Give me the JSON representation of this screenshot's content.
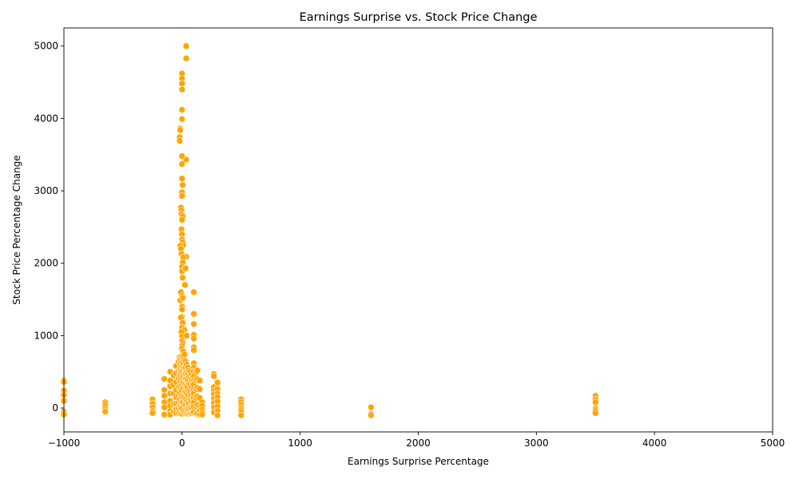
{
  "chart_data": {
    "type": "scatter",
    "title": "Earnings Surprise vs. Stock Price Change",
    "xlabel": "Earnings Surprise Percentage",
    "ylabel": "Stock Price Percentage Change",
    "xlim": [
      -1000,
      5000
    ],
    "ylim": [
      -330,
      5250
    ],
    "x_ticks": [
      -1000,
      0,
      1000,
      2000,
      3000,
      4000,
      5000
    ],
    "y_ticks": [
      0,
      1000,
      2000,
      3000,
      4000,
      5000
    ],
    "grid": false,
    "legend": "none",
    "marker_color": "#ffa500",
    "series": [
      {
        "x": [
          35,
          35,
          0,
          0,
          0,
          0,
          0,
          0,
          -15,
          -15,
          -20,
          -20,
          35,
          0,
          0,
          0,
          5,
          0,
          0,
          -10,
          -5,
          -5,
          5,
          0,
          -5,
          0,
          0,
          5,
          10,
          -15,
          -10,
          -5,
          35,
          10,
          5,
          0,
          0,
          5,
          25,
          30,
          -10,
          -15,
          0,
          5,
          0,
          0,
          100,
          0,
          -10,
          5,
          0,
          100,
          20,
          -5,
          0,
          100,
          100,
          0,
          5,
          100,
          100,
          0,
          100,
          0,
          270,
          270,
          -150,
          300,
          -1000,
          -1000,
          -1000,
          -1000,
          -1000,
          -1000,
          -1000,
          -650,
          -650,
          -650,
          -650,
          -650,
          -250,
          -250,
          -250,
          -250,
          -250,
          -150,
          -150,
          -150,
          -150,
          -150,
          -100,
          -100,
          -100,
          -100,
          -100,
          -100,
          -100,
          -100,
          -70,
          -70,
          -70,
          -70,
          -70,
          -50,
          -50,
          -50,
          -50,
          -50,
          -50,
          -50,
          -50,
          -30,
          -30,
          -30,
          -30,
          -30,
          -30,
          -30,
          -30,
          -20,
          -20,
          -20,
          -20,
          -20,
          -20,
          -20,
          -20,
          -20,
          -20,
          -10,
          -10,
          -10,
          -10,
          -10,
          -10,
          -10,
          -10,
          -10,
          -10,
          0,
          0,
          0,
          0,
          0,
          0,
          0,
          0,
          0,
          0,
          0,
          0,
          10,
          10,
          10,
          10,
          10,
          10,
          10,
          10,
          10,
          10,
          20,
          20,
          20,
          20,
          20,
          20,
          20,
          20,
          20,
          20,
          30,
          30,
          30,
          30,
          30,
          30,
          30,
          30,
          30,
          40,
          40,
          40,
          40,
          40,
          40,
          40,
          40,
          40,
          50,
          50,
          50,
          50,
          50,
          50,
          50,
          50,
          60,
          60,
          60,
          60,
          60,
          60,
          60,
          60,
          70,
          70,
          70,
          70,
          70,
          70,
          70,
          80,
          80,
          80,
          80,
          80,
          80,
          80,
          90,
          90,
          90,
          90,
          90,
          90,
          100,
          100,
          100,
          100,
          100,
          100,
          100,
          100,
          100,
          100,
          100,
          100,
          120,
          120,
          120,
          120,
          120,
          120,
          130,
          130,
          130,
          130,
          130,
          130,
          150,
          150,
          150,
          150,
          150,
          150,
          170,
          170,
          170,
          170,
          170,
          270,
          270,
          270,
          270,
          270,
          270,
          270,
          300,
          300,
          300,
          300,
          300,
          300,
          300,
          300,
          500,
          500,
          500,
          500,
          500,
          500,
          500,
          1600,
          1600,
          1600,
          3500,
          3500,
          3500,
          3500,
          3500,
          3500
        ],
        "y": [
          5000,
          4830,
          4620,
          4550,
          4480,
          4400,
          4120,
          3990,
          3860,
          3840,
          3740,
          3690,
          3430,
          3480,
          3370,
          3170,
          3080,
          2980,
          2930,
          2770,
          2730,
          2680,
          2650,
          2600,
          2470,
          2400,
          2330,
          2290,
          2250,
          2240,
          2200,
          2130,
          2090,
          2080,
          2010,
          1950,
          1890,
          1800,
          1700,
          1930,
          1600,
          1490,
          1550,
          1520,
          1400,
          1360,
          1600,
          1260,
          1250,
          1180,
          1110,
          1300,
          1080,
          1050,
          990,
          1160,
          1010,
          930,
          900,
          960,
          840,
          860,
          800,
          720,
          470,
          440,
          400,
          350,
          380,
          360,
          240,
          180,
          100,
          -50,
          -90,
          80,
          50,
          20,
          -20,
          -50,
          120,
          60,
          10,
          -40,
          -70,
          250,
          170,
          80,
          10,
          -90,
          500,
          380,
          300,
          200,
          100,
          30,
          -40,
          -90,
          450,
          320,
          200,
          60,
          -50,
          580,
          480,
          360,
          250,
          150,
          60,
          -20,
          -70,
          640,
          520,
          410,
          290,
          170,
          80,
          0,
          -70,
          700,
          620,
          540,
          460,
          380,
          300,
          200,
          120,
          30,
          -60,
          680,
          600,
          520,
          440,
          360,
          260,
          170,
          80,
          0,
          -80,
          820,
          720,
          640,
          560,
          480,
          400,
          320,
          240,
          160,
          80,
          0,
          -80,
          780,
          700,
          620,
          540,
          440,
          360,
          280,
          180,
          80,
          -50,
          740,
          660,
          560,
          480,
          400,
          320,
          220,
          140,
          40,
          -70,
          640,
          560,
          480,
          400,
          300,
          220,
          120,
          40,
          -60,
          1000,
          600,
          500,
          400,
          300,
          200,
          100,
          0,
          -80,
          560,
          480,
          380,
          280,
          180,
          80,
          0,
          -70,
          520,
          440,
          340,
          240,
          140,
          60,
          -20,
          -80,
          500,
          420,
          320,
          220,
          120,
          20,
          -70,
          460,
          380,
          280,
          180,
          100,
          10,
          -70,
          420,
          340,
          240,
          140,
          40,
          -60,
          620,
          560,
          500,
          440,
          380,
          320,
          260,
          200,
          140,
          80,
          20,
          -60,
          500,
          380,
          260,
          140,
          20,
          -80,
          520,
          400,
          280,
          160,
          40,
          -70,
          380,
          260,
          140,
          20,
          -40,
          -90,
          80,
          30,
          -20,
          -60,
          -90,
          290,
          240,
          190,
          130,
          70,
          10,
          -60,
          350,
          260,
          200,
          150,
          90,
          20,
          -40,
          -100,
          120,
          80,
          40,
          0,
          -30,
          -60,
          -100,
          10,
          -80,
          -100,
          170,
          120,
          80,
          -10,
          -40,
          -70
        ]
      }
    ]
  }
}
